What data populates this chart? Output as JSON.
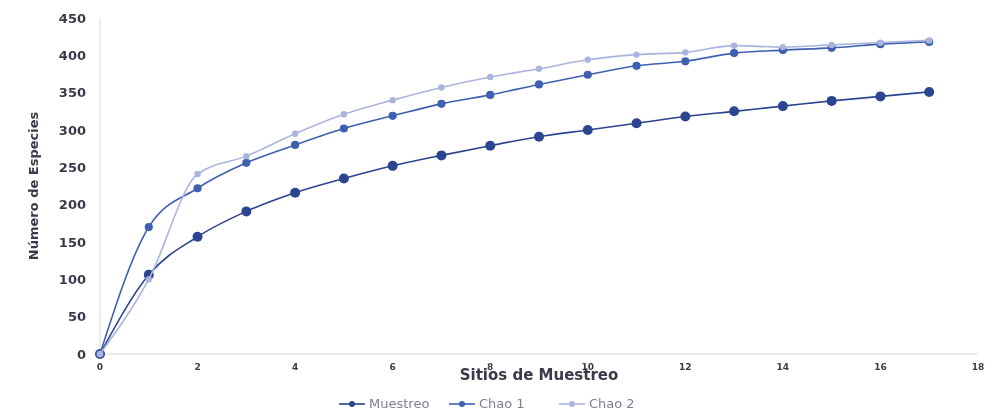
{
  "chart_data": {
    "type": "line",
    "xlabel": "Sitios de Muestreo",
    "ylabel": "Número de Especies",
    "x": [
      0,
      1,
      2,
      3,
      4,
      5,
      6,
      7,
      8,
      9,
      10,
      11,
      12,
      13,
      14,
      15,
      16,
      17
    ],
    "series": [
      {
        "name": "Muestreo",
        "color": "#2b4590",
        "values": [
          0,
          106,
          157,
          191,
          216,
          235,
          252,
          266,
          279,
          291,
          300,
          309,
          318,
          325,
          332,
          339,
          345,
          351
        ]
      },
      {
        "name": "Chao 1",
        "color": "#3f60b0",
        "values": [
          0,
          170,
          222,
          256,
          280,
          302,
          319,
          335,
          347,
          361,
          374,
          386,
          392,
          403,
          407,
          410,
          415,
          418
        ]
      },
      {
        "name": "Chao 2",
        "color": "#a9b5dc",
        "values": [
          0,
          100,
          241,
          265,
          295,
          321,
          340,
          357,
          371,
          382,
          394,
          401,
          404,
          413,
          411,
          414,
          417,
          420
        ]
      }
    ],
    "xlim": [
      0,
      18
    ],
    "xticks": [
      0,
      2,
      4,
      6,
      8,
      10,
      12,
      14,
      16,
      18
    ],
    "ylim": [
      0,
      450
    ],
    "yticks": [
      0,
      50,
      100,
      150,
      200,
      250,
      300,
      350,
      400,
      450
    ],
    "grid": false,
    "legend": "bottom",
    "marker": "circle",
    "line_style": "solid"
  }
}
